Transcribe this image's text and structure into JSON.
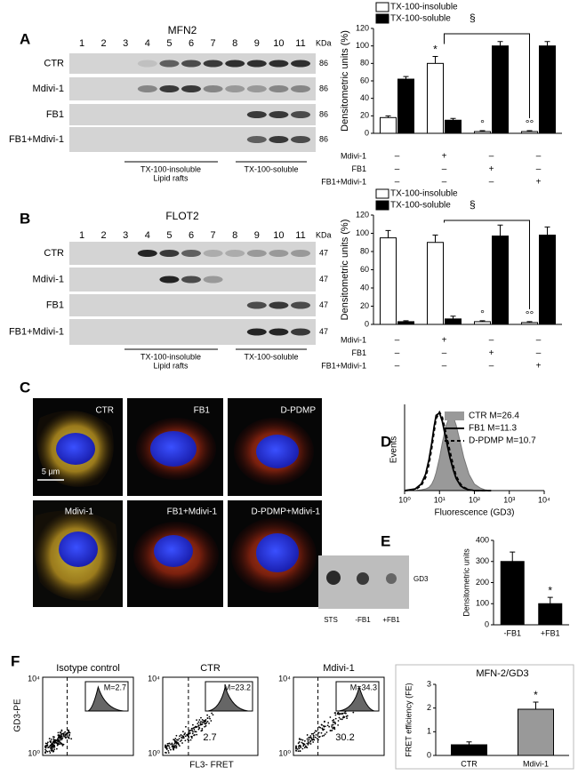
{
  "panel_letters": [
    "A",
    "B",
    "C",
    "D",
    "E",
    "F"
  ],
  "blots": [
    {
      "title": "MFN2",
      "lanes": [
        "1",
        "2",
        "3",
        "4",
        "5",
        "6",
        "7",
        "8",
        "9",
        "10",
        "11"
      ],
      "unit": "KDa",
      "rows": [
        "CTR",
        "Mdivi-1",
        "FB1",
        "FB1+Mdivi-1"
      ],
      "sizes": [
        "86",
        "86",
        "86",
        "86"
      ],
      "fractions": [
        "TX-100-insoluble",
        "Lipid rafts",
        "TX-100-soluble"
      ]
    },
    {
      "title": "FLOT2",
      "lanes": [
        "1",
        "2",
        "3",
        "4",
        "5",
        "6",
        "7",
        "8",
        "9",
        "10",
        "11"
      ],
      "unit": "KDa",
      "rows": [
        "CTR",
        "Mdivi-1",
        "FB1",
        "FB1+Mdivi-1"
      ],
      "sizes": [
        "47",
        "47",
        "47",
        "47"
      ],
      "fractions": [
        "TX-100-insoluble",
        "Lipid rafts",
        "TX-100-soluble"
      ]
    }
  ],
  "microscopy": {
    "labels": [
      "CTR",
      "FB1",
      "D-PDMP",
      "Mdivi-1",
      "FB1+Mdivi-1",
      "D-PDMP+Mdivi-1"
    ],
    "scale_bar": "5 µm"
  },
  "gd3_blot": {
    "lanes": [
      "STS",
      "-FB1",
      "+FB1"
    ],
    "label": "GD3"
  },
  "fret_plots": {
    "panels": [
      "Isotype  control",
      "CTR",
      "Mdivi-1"
    ],
    "insets": [
      "M=2.7",
      "M=23.2",
      "M=34.3"
    ],
    "quadrant_values": [
      "2.7",
      "30.2"
    ],
    "y_label": "GD3-PE",
    "x_label": "FL3- FRET",
    "axis_ticks": [
      "10⁴",
      "10⁰"
    ]
  },
  "chart_data": [
    {
      "type": "bar",
      "y_label": "Densitometric units (%)",
      "categories": [
        null,
        null,
        null,
        null
      ],
      "legend": "top",
      "series": [
        {
          "name": "TX-100-insoluble",
          "color": "#ffffff",
          "values": [
            18,
            80,
            2,
            2
          ],
          "errors": [
            2,
            8,
            1,
            1
          ]
        },
        {
          "name": "TX-100-soluble",
          "color": "#000000",
          "values": [
            62,
            15,
            100,
            100
          ],
          "errors": [
            3,
            2,
            5,
            5
          ]
        }
      ],
      "ylim": [
        0,
        120
      ],
      "yticks": [
        0,
        20,
        40,
        60,
        80,
        100,
        120
      ],
      "treatments": {
        "rows": [
          "Mdivi-1",
          "FB1",
          "FB1+Mdivi-1"
        ],
        "signs": [
          [
            "–",
            "+",
            "–",
            "–"
          ],
          [
            "–",
            "–",
            "+",
            "–"
          ],
          [
            "–",
            "–",
            "–",
            "+"
          ]
        ]
      },
      "annotations": [
        "*",
        "°",
        "°°",
        "§"
      ]
    },
    {
      "type": "bar",
      "y_label": "Densitometric units (%)",
      "categories": [
        null,
        null,
        null,
        null
      ],
      "legend": "top",
      "series": [
        {
          "name": "TX-100-insoluble",
          "color": "#ffffff",
          "values": [
            95,
            90,
            3,
            2
          ],
          "errors": [
            8,
            8,
            1,
            1
          ]
        },
        {
          "name": "TX-100-soluble",
          "color": "#000000",
          "values": [
            3,
            6,
            97,
            98
          ],
          "errors": [
            1,
            3,
            12,
            9
          ]
        }
      ],
      "ylim": [
        0,
        120
      ],
      "yticks": [
        0,
        20,
        40,
        60,
        80,
        100,
        120
      ],
      "treatments": {
        "rows": [
          "Mdivi-1",
          "FB1",
          "FB1+Mdivi-1"
        ],
        "signs": [
          [
            "–",
            "+",
            "–",
            "–"
          ],
          [
            "–",
            "–",
            "+",
            "–"
          ],
          [
            "–",
            "–",
            "–",
            "+"
          ]
        ]
      },
      "annotations": [
        "°",
        "°°",
        "§"
      ]
    },
    {
      "type": "line",
      "x_label": "Fluorescence (GD3)",
      "y_label": "Events",
      "log_x": true,
      "xlim": [
        1,
        10000
      ],
      "xticks": [
        {
          "value": 1,
          "label": "10⁰"
        },
        {
          "value": 10,
          "label": "10¹"
        },
        {
          "value": 100,
          "label": "10²"
        },
        {
          "value": 1000,
          "label": "10³"
        },
        {
          "value": 10000,
          "label": "10⁴"
        }
      ],
      "ylim": [
        0,
        100
      ],
      "x": [
        1,
        2,
        3,
        4,
        5,
        6,
        7,
        8,
        10,
        12,
        15,
        20,
        25,
        30,
        40,
        50,
        70,
        100,
        150,
        200,
        300
      ],
      "series": [
        {
          "name": "CTR M=26.4",
          "color": "#999999",
          "style": "filled",
          "values": [
            0,
            0,
            1,
            2,
            4,
            8,
            14,
            22,
            40,
            58,
            78,
            92,
            90,
            80,
            58,
            40,
            20,
            8,
            3,
            1,
            0
          ]
        },
        {
          "name": "FB1 M=11.3",
          "color": "#000000",
          "style": "solid",
          "values": [
            0,
            2,
            8,
            20,
            38,
            58,
            78,
            92,
            95,
            85,
            65,
            40,
            25,
            15,
            6,
            3,
            1,
            0,
            0,
            0,
            0
          ]
        },
        {
          "name": "D-PDMP M=10.7",
          "color": "#000000",
          "style": "dashed",
          "values": [
            0,
            1,
            6,
            16,
            32,
            52,
            72,
            88,
            96,
            90,
            72,
            48,
            30,
            18,
            8,
            4,
            1,
            0,
            0,
            0,
            0
          ]
        }
      ]
    },
    {
      "type": "bar",
      "y_label": "Densitometric units",
      "categories": [
        "-FB1",
        "+FB1"
      ],
      "series": [
        {
          "color": "#000000",
          "values": [
            300,
            100
          ],
          "errors": [
            45,
            30
          ]
        }
      ],
      "ylim": [
        0,
        400
      ],
      "yticks": [
        0,
        100,
        200,
        300,
        400
      ],
      "annotations": [
        "*"
      ]
    },
    {
      "type": "bar",
      "title": "MFN-2/GD3",
      "y_label": "FRET efficiency (FE)",
      "categories": [
        "CTR",
        "Mdivi-1"
      ],
      "series": [
        {
          "colors": [
            "#000000",
            "#999999"
          ],
          "values": [
            0.45,
            1.95
          ],
          "errors": [
            0.12,
            0.3
          ]
        }
      ],
      "ylim": [
        0,
        3
      ],
      "yticks": [
        0,
        1,
        2,
        3
      ],
      "annotations": [
        "*"
      ]
    }
  ]
}
